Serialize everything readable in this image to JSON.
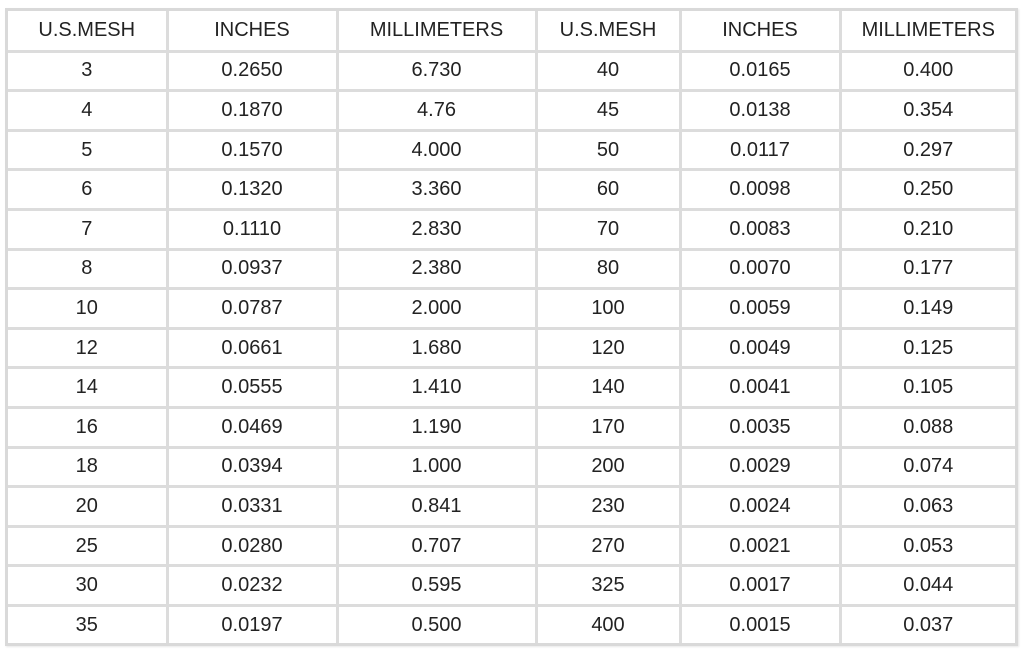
{
  "headers": [
    "U.S.MESH",
    "INCHES",
    "MILLIMETERS",
    "U.S.MESH",
    "INCHES",
    "MILLIMETERS"
  ],
  "rows": [
    [
      "3",
      "0.2650",
      "6.730",
      "40",
      "0.0165",
      "0.400"
    ],
    [
      "4",
      "0.1870",
      "4.76",
      "45",
      "0.0138",
      "0.354"
    ],
    [
      "5",
      "0.1570",
      "4.000",
      "50",
      "0.0117",
      "0.297"
    ],
    [
      "6",
      "0.1320",
      "3.360",
      "60",
      "0.0098",
      "0.250"
    ],
    [
      "7",
      "0.1110",
      "2.830",
      "70",
      "0.0083",
      "0.210"
    ],
    [
      "8",
      "0.0937",
      "2.380",
      "80",
      "0.0070",
      "0.177"
    ],
    [
      "10",
      "0.0787",
      "2.000",
      "100",
      "0.0059",
      "0.149"
    ],
    [
      "12",
      "0.0661",
      "1.680",
      "120",
      "0.0049",
      "0.125"
    ],
    [
      "14",
      "0.0555",
      "1.410",
      "140",
      "0.0041",
      "0.105"
    ],
    [
      "16",
      "0.0469",
      "1.190",
      "170",
      "0.0035",
      "0.088"
    ],
    [
      "18",
      "0.0394",
      "1.000",
      "200",
      "0.0029",
      "0.074"
    ],
    [
      "20",
      "0.0331",
      "0.841",
      "230",
      "0.0024",
      "0.063"
    ],
    [
      "25",
      "0.0280",
      "0.707",
      "270",
      "0.0021",
      "0.053"
    ],
    [
      "30",
      "0.0232",
      "0.595",
      "325",
      "0.0017",
      "0.044"
    ],
    [
      "35",
      "0.0197",
      "0.500",
      "400",
      "0.0015",
      "0.037"
    ]
  ]
}
